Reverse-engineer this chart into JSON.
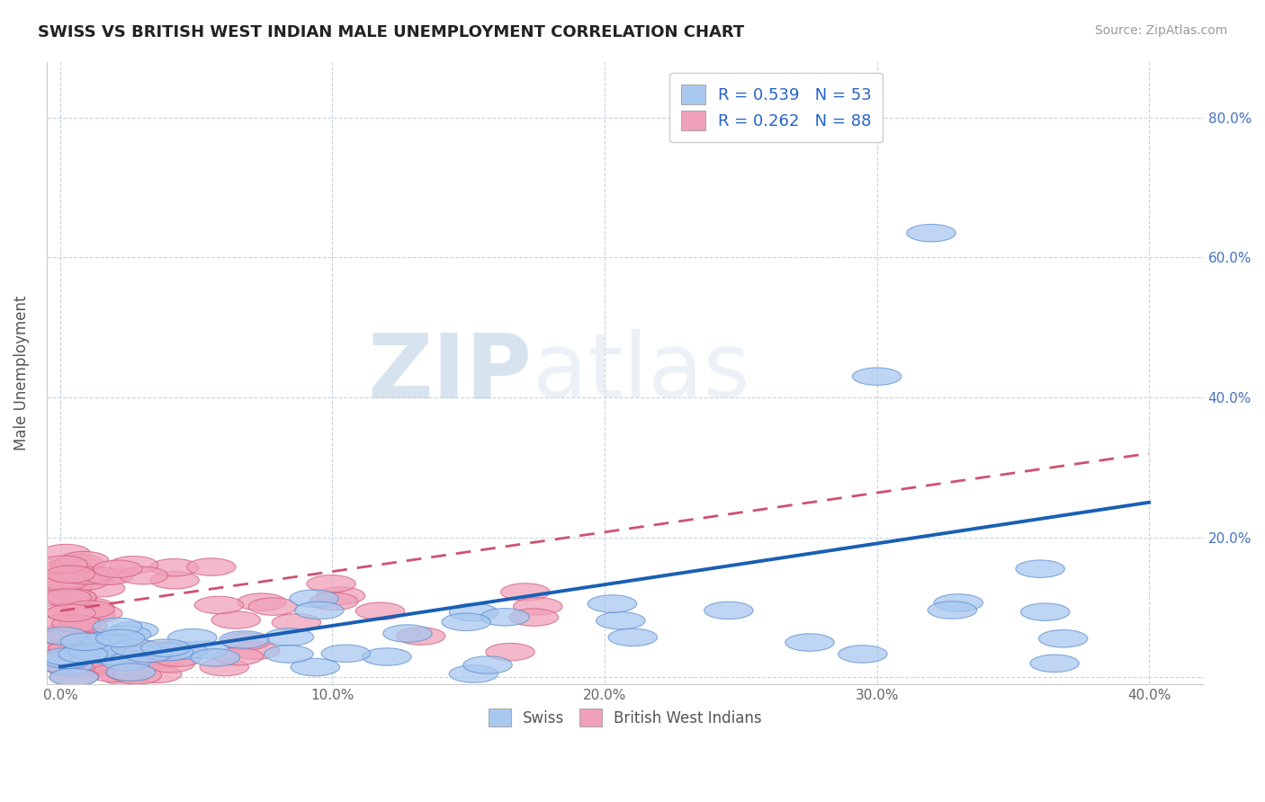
{
  "title": "SWISS VS BRITISH WEST INDIAN MALE UNEMPLOYMENT CORRELATION CHART",
  "source": "Source: ZipAtlas.com",
  "ylabel": "Male Unemployment",
  "xlim": [
    -0.005,
    0.42
  ],
  "ylim": [
    -0.01,
    0.88
  ],
  "xticks": [
    0.0,
    0.1,
    0.2,
    0.3,
    0.4
  ],
  "xticklabels": [
    "0.0%",
    "10.0%",
    "20.0%",
    "30.0%",
    "40.0%"
  ],
  "yticks": [
    0.0,
    0.2,
    0.4,
    0.6,
    0.8
  ],
  "yticklabels_right": [
    "",
    "20.0%",
    "40.0%",
    "60.0%",
    "80.0%"
  ],
  "swiss_color": "#a8c8f0",
  "bwi_color": "#f0a0b8",
  "swiss_edge_color": "#6090d0",
  "bwi_edge_color": "#d06080",
  "swiss_line_color": "#1a5fb4",
  "bwi_line_color": "#d05070",
  "legend_text1": "R = 0.539   N = 53",
  "legend_text2": "R = 0.262   N = 88",
  "swiss_label": "Swiss",
  "bwi_label": "British West Indians",
  "watermark_zip": "ZIP",
  "watermark_atlas": "atlas",
  "background_color": "#ffffff",
  "grid_color": "#c0cfe0",
  "swiss_trendline": [
    0.015,
    0.25
  ],
  "bwi_trendline_start": 0.095,
  "bwi_trendline_end": 0.32
}
